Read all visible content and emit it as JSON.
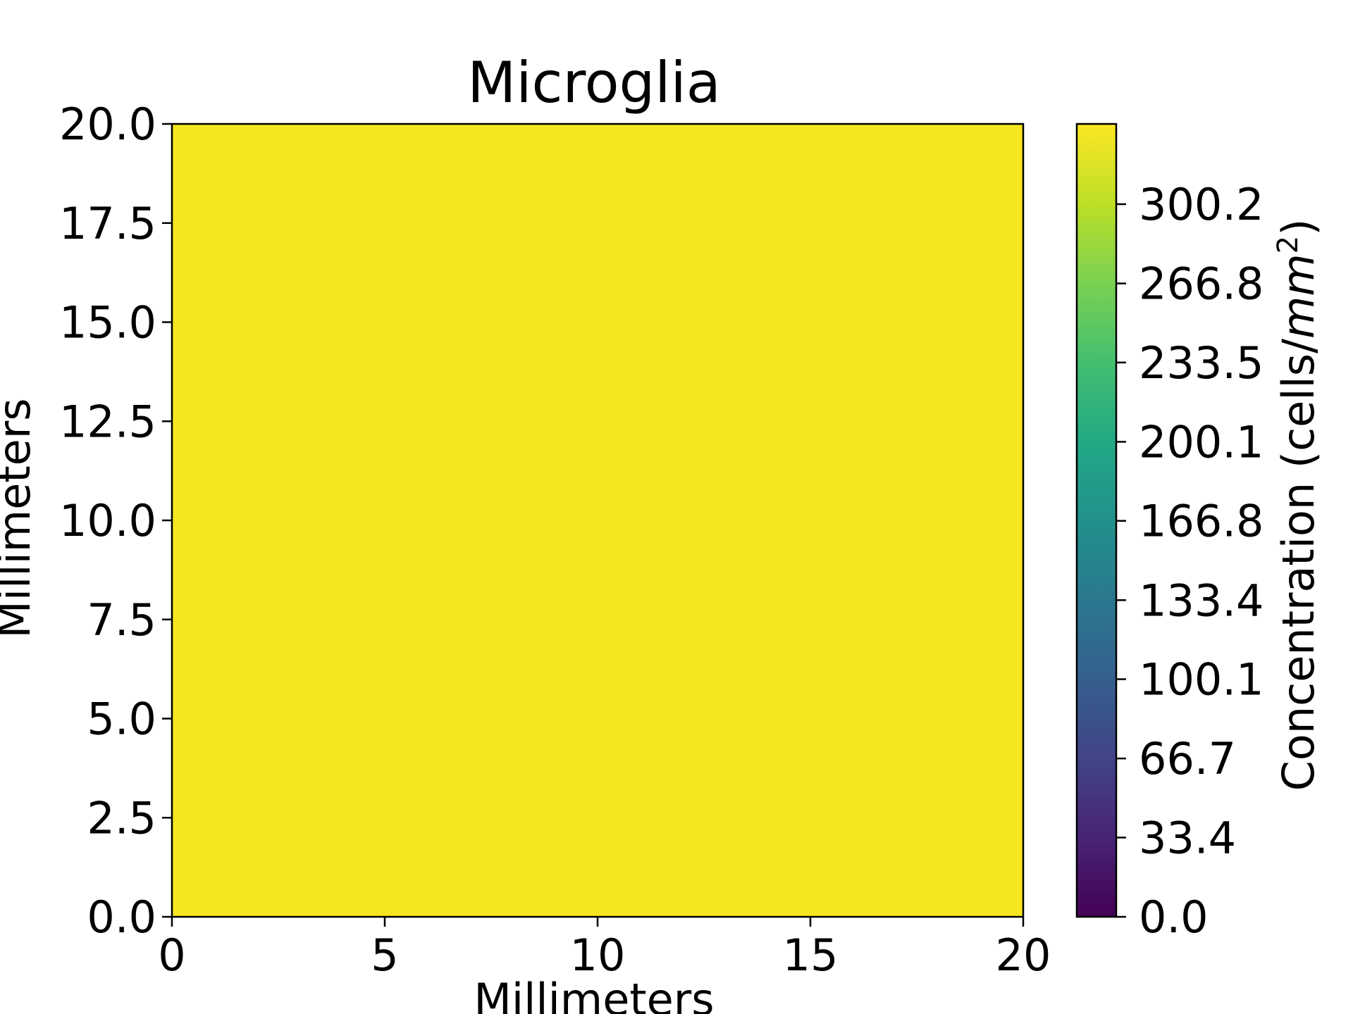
{
  "chart_data": {
    "type": "heatmap",
    "title": "Microglia",
    "xlabel": "Millimeters",
    "ylabel": "Millimeters",
    "xlim": [
      0,
      20
    ],
    "ylim": [
      0,
      20
    ],
    "x_ticks": [
      {
        "value": 0,
        "label": "0"
      },
      {
        "value": 5,
        "label": "5"
      },
      {
        "value": 10,
        "label": "10"
      },
      {
        "value": 15,
        "label": "15"
      },
      {
        "value": 20,
        "label": "20"
      }
    ],
    "y_ticks": [
      {
        "value": 0,
        "label": "0.0"
      },
      {
        "value": 2.5,
        "label": "2.5"
      },
      {
        "value": 5,
        "label": "5.0"
      },
      {
        "value": 7.5,
        "label": "7.5"
      },
      {
        "value": 10,
        "label": "10.0"
      },
      {
        "value": 12.5,
        "label": "12.5"
      },
      {
        "value": 15,
        "label": "15.0"
      },
      {
        "value": 17.5,
        "label": "17.5"
      },
      {
        "value": 20,
        "label": "20.0"
      }
    ],
    "field": {
      "uniform_value": 334,
      "color": "#f5e61f"
    },
    "colorbar": {
      "label_prefix": "Concentration (cells/",
      "label_unit": "mm",
      "label_exponent": "2",
      "label_suffix": ")",
      "range": [
        0,
        334
      ],
      "colormap": "viridis",
      "colors": [
        "#440154",
        "#482475",
        "#414487",
        "#355f8d",
        "#2a788e",
        "#21918c",
        "#22a884",
        "#44bf70",
        "#7ad151",
        "#bddf26",
        "#fde725"
      ],
      "ticks": [
        {
          "value": 0.0,
          "label": "0.0"
        },
        {
          "value": 33.4,
          "label": "33.4"
        },
        {
          "value": 66.7,
          "label": "66.7"
        },
        {
          "value": 100.1,
          "label": "100.1"
        },
        {
          "value": 133.4,
          "label": "133.4"
        },
        {
          "value": 166.8,
          "label": "166.8"
        },
        {
          "value": 200.1,
          "label": "200.1"
        },
        {
          "value": 233.5,
          "label": "233.5"
        },
        {
          "value": 266.8,
          "label": "266.8"
        },
        {
          "value": 300.2,
          "label": "300.2"
        }
      ]
    }
  }
}
